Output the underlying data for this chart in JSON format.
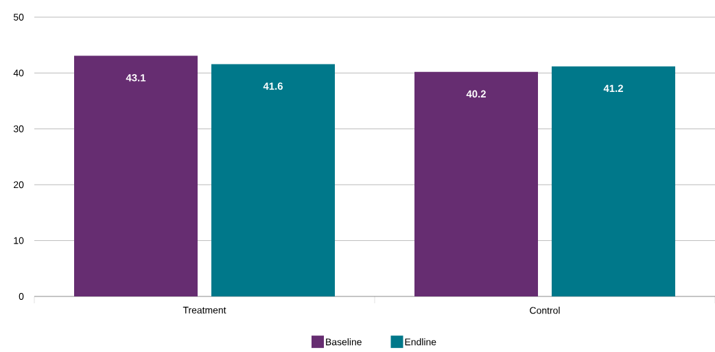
{
  "chart_data": {
    "type": "bar",
    "categories": [
      "Treatment",
      "Control"
    ],
    "series": [
      {
        "name": "Baseline",
        "color": "#662d71",
        "values": [
          43.1,
          40.2
        ],
        "value_labels": [
          "43.1",
          "40.2"
        ]
      },
      {
        "name": "Endline",
        "color": "#00788a",
        "values": [
          41.6,
          41.2
        ],
        "value_labels": [
          "41.6",
          "41.2"
        ]
      }
    ],
    "ylim": [
      0,
      50
    ],
    "yticks": [
      0,
      10,
      20,
      30,
      40,
      50
    ],
    "grid": "y",
    "legend": "bottom"
  }
}
